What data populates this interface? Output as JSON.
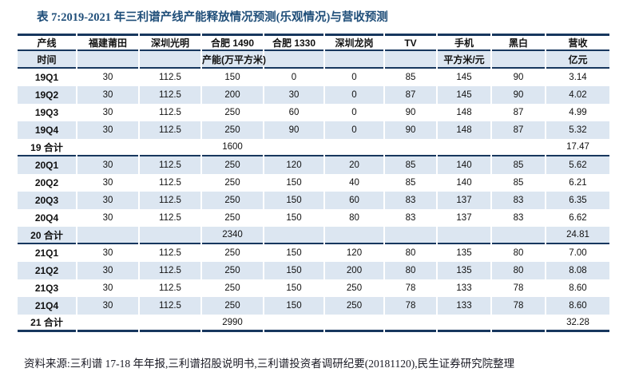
{
  "title": "表 7:2019-2021 年三利谱产线产能释放情况预测(乐观情况)与营收预测",
  "colors": {
    "navy_line": "#17375E",
    "row_highlight_blue": "#DCE6F1",
    "title_blue": "#1F4E79"
  },
  "table": {
    "columns": [
      "产线",
      "福建莆田",
      "深圳光明",
      "合肥 1490",
      "合肥 1330",
      "深圳龙岗",
      "TV",
      "手机",
      "黑白",
      "营收"
    ],
    "units_row": {
      "time": "时间",
      "capacity": "产能(万平方米)",
      "price": "平方米/元",
      "revenue": "亿元"
    },
    "rows": [
      {
        "cells": [
          "19Q1",
          "30",
          "112.5",
          "150",
          "0",
          "0",
          "85",
          "145",
          "90",
          "3.14"
        ],
        "shaded": false,
        "section_end": false
      },
      {
        "cells": [
          "19Q2",
          "30",
          "112.5",
          "200",
          "30",
          "0",
          "87",
          "145",
          "90",
          "4.02"
        ],
        "shaded": true,
        "section_end": false
      },
      {
        "cells": [
          "19Q3",
          "30",
          "112.5",
          "250",
          "60",
          "0",
          "90",
          "148",
          "87",
          "4.99"
        ],
        "shaded": false,
        "section_end": false
      },
      {
        "cells": [
          "19Q4",
          "30",
          "112.5",
          "250",
          "90",
          "0",
          "90",
          "148",
          "87",
          "5.32"
        ],
        "shaded": true,
        "section_end": false
      },
      {
        "cells": [
          "19 合计",
          "",
          "",
          "1600",
          "",
          "",
          "",
          "",
          "",
          "17.47"
        ],
        "shaded": false,
        "section_end": true
      },
      {
        "cells": [
          "20Q1",
          "30",
          "112.5",
          "250",
          "120",
          "20",
          "85",
          "140",
          "85",
          "5.62"
        ],
        "shaded": true,
        "section_end": false
      },
      {
        "cells": [
          "20Q2",
          "30",
          "112.5",
          "250",
          "150",
          "40",
          "85",
          "140",
          "85",
          "6.21"
        ],
        "shaded": false,
        "section_end": false
      },
      {
        "cells": [
          "20Q3",
          "30",
          "112.5",
          "250",
          "150",
          "60",
          "83",
          "137",
          "83",
          "6.35"
        ],
        "shaded": true,
        "section_end": false
      },
      {
        "cells": [
          "20Q4",
          "30",
          "112.5",
          "250",
          "150",
          "80",
          "83",
          "137",
          "83",
          "6.62"
        ],
        "shaded": false,
        "section_end": false
      },
      {
        "cells": [
          "20 合计",
          "",
          "",
          "2340",
          "",
          "",
          "",
          "",
          "",
          "24.81"
        ],
        "shaded": true,
        "section_end": true
      },
      {
        "cells": [
          "21Q1",
          "30",
          "112.5",
          "250",
          "150",
          "120",
          "80",
          "135",
          "80",
          "7.00"
        ],
        "shaded": false,
        "section_end": false
      },
      {
        "cells": [
          "21Q2",
          "30",
          "112.5",
          "250",
          "150",
          "200",
          "80",
          "135",
          "80",
          "8.08"
        ],
        "shaded": true,
        "section_end": false
      },
      {
        "cells": [
          "21Q3",
          "30",
          "112.5",
          "250",
          "150",
          "250",
          "78",
          "133",
          "78",
          "8.60"
        ],
        "shaded": false,
        "section_end": false
      },
      {
        "cells": [
          "21Q4",
          "30",
          "112.5",
          "250",
          "150",
          "250",
          "78",
          "133",
          "78",
          "8.60"
        ],
        "shaded": true,
        "section_end": false
      },
      {
        "cells": [
          "21 合计",
          "",
          "",
          "2990",
          "",
          "",
          "",
          "",
          "",
          "32.28"
        ],
        "shaded": false,
        "section_end": true
      }
    ]
  },
  "footer": "资料来源:三利谱 17-18 年年报,三利谱招股说明书,三利谱投资者调研纪要(20181120),民生证券研究院整理"
}
